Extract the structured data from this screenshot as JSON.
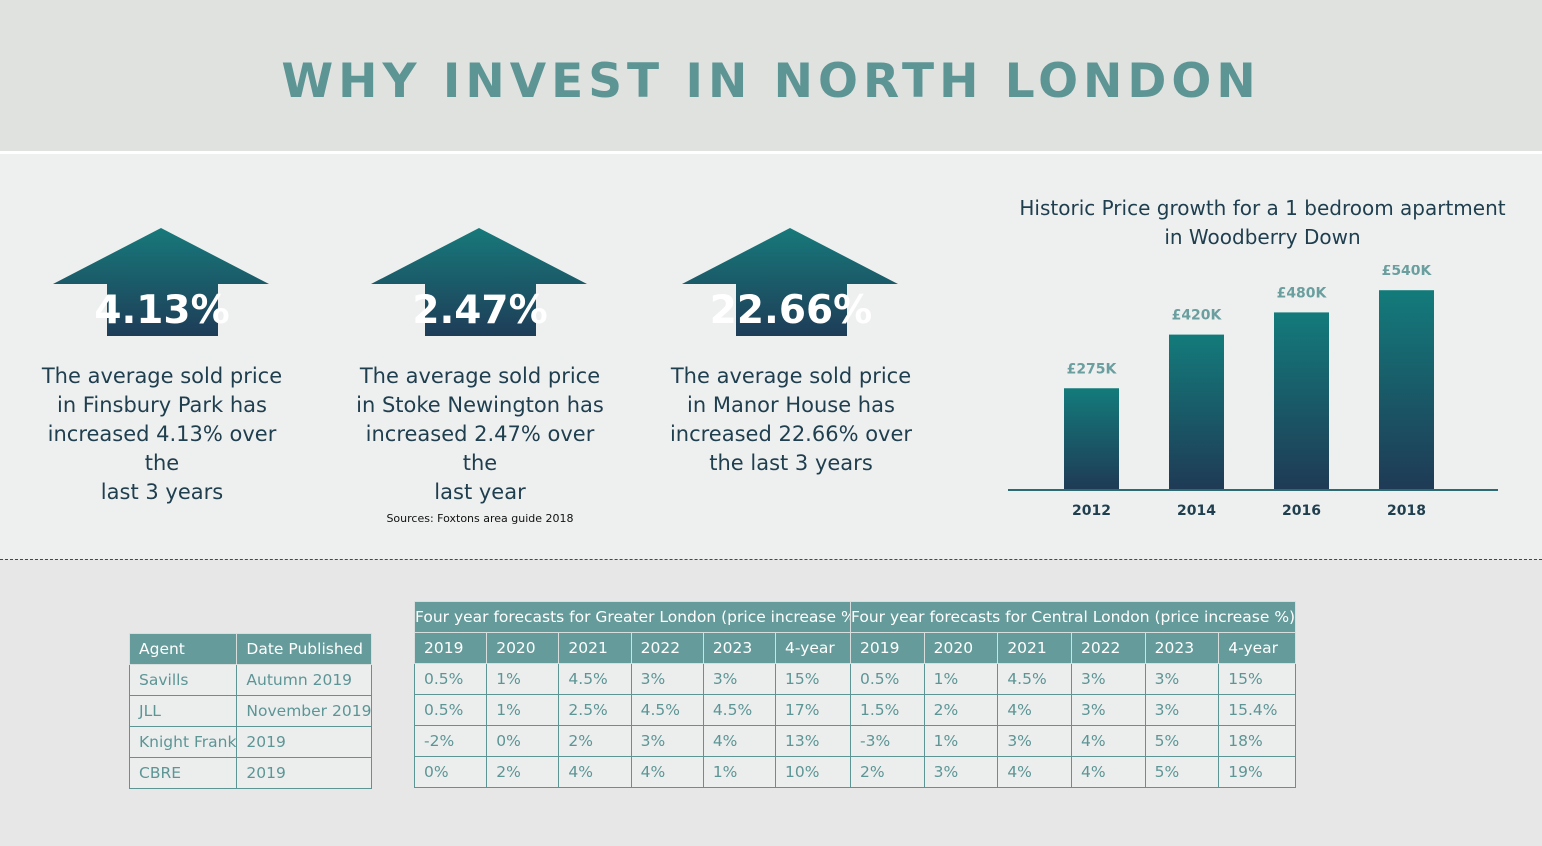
{
  "page_title": "WHY INVEST IN NORTH LONDON",
  "colors": {
    "teal": "#5d9595",
    "navy": "#1f3e4e",
    "arrow_top": "#17797a",
    "arrow_bottom": "#1e3d58",
    "table_header": "#659b9a"
  },
  "stats": [
    {
      "value": "4.13%",
      "lines": [
        "The average sold price",
        "in Finsbury Park has",
        "increased 4.13% over the",
        "last 3 years"
      ]
    },
    {
      "value": "2.47%",
      "lines": [
        "The average sold price",
        "in Stoke Newington has",
        "increased 2.47% over the",
        "last year"
      ]
    },
    {
      "value": "22.66%",
      "lines": [
        "The average sold price",
        "in Manor House has",
        "increased 22.66% over",
        "the last 3 years"
      ]
    }
  ],
  "sources": "Sources: Foxtons area guide 2018",
  "chart_data": {
    "type": "bar",
    "title_lines": [
      "Historic Price growth for a 1 bedroom apartment",
      "in Woodberry Down"
    ],
    "categories": [
      "2012",
      "2014",
      "2016",
      "2018"
    ],
    "values": [
      275,
      420,
      480,
      540
    ],
    "labels": [
      "£275K",
      "£420K",
      "£480K",
      "£540K"
    ],
    "ylim": [
      0,
      600
    ],
    "unit": "£K",
    "grid": false,
    "legend": "none"
  },
  "forecast": {
    "agent_header": "Agent",
    "date_header": "Date Published",
    "greater_title": "Four year forecasts for Greater London (price increase %)",
    "central_title": "Four year forecasts for Central London (price increase %)",
    "year_headers": [
      "2019",
      "2020",
      "2021",
      "2022",
      "2023",
      "4-year"
    ],
    "rows": [
      {
        "agent": "Savills",
        "date": "Autumn 2019",
        "greater": [
          "0.5%",
          "1%",
          "4.5%",
          "3%",
          "3%",
          "15%"
        ],
        "central": [
          "0.5%",
          "1%",
          "4.5%",
          "3%",
          "3%",
          "15%"
        ]
      },
      {
        "agent": "JLL",
        "date": "November 2019",
        "greater": [
          "0.5%",
          "1%",
          "2.5%",
          "4.5%",
          "4.5%",
          "17%"
        ],
        "central": [
          "1.5%",
          "2%",
          "4%",
          "3%",
          "3%",
          "15.4%"
        ]
      },
      {
        "agent": "Knight Frank",
        "date": "2019",
        "greater": [
          "-2%",
          "0%",
          "2%",
          "3%",
          "4%",
          "13%"
        ],
        "central": [
          "-3%",
          "1%",
          "3%",
          "4%",
          "5%",
          "18%"
        ]
      },
      {
        "agent": "CBRE",
        "date": "2019",
        "greater": [
          "0%",
          "2%",
          "4%",
          "4%",
          "1%",
          "10%"
        ],
        "central": [
          "2%",
          "3%",
          "4%",
          "4%",
          "5%",
          "19%"
        ]
      }
    ]
  }
}
